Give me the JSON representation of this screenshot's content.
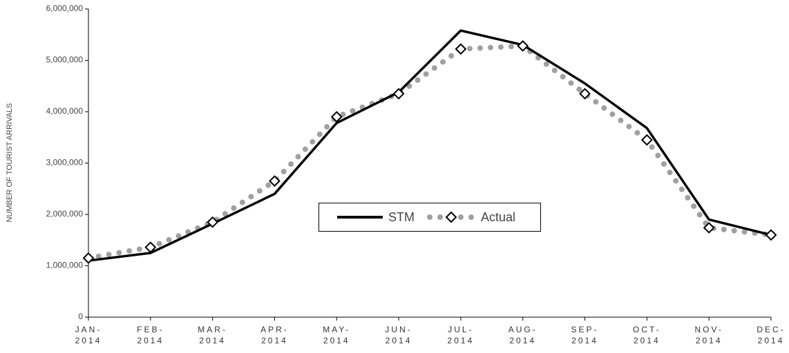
{
  "chart_data": {
    "type": "line",
    "y_label": "NUMBER OF TOURIST ARRIVALS",
    "categories": [
      "JAN-\n2014",
      "FEB-\n2014",
      "MAR-\n2014",
      "APR-\n2014",
      "MAY-\n2014",
      "JUN-\n2014",
      "JUL-\n2014",
      "AUG-\n2014",
      "SEP-\n2014",
      "OCT-\n2014",
      "NOV-\n2014",
      "DEC-\n2014"
    ],
    "series": [
      {
        "name": "STM",
        "color": "#000000",
        "values": [
          1100000,
          1250000,
          1820000,
          2400000,
          3780000,
          4380000,
          5580000,
          5300000,
          4550000,
          3680000,
          1900000,
          1600000
        ]
      },
      {
        "name": "Actual",
        "color": "#a0a0a0",
        "values": [
          1150000,
          1360000,
          1850000,
          2650000,
          3900000,
          4350000,
          5220000,
          5280000,
          4350000,
          3450000,
          1740000,
          1600000
        ]
      }
    ],
    "ylim": [
      0,
      6000000
    ],
    "yticks": [
      0,
      {
        "value": 1000000,
        "label": "1,000,000"
      },
      {
        "value": 2000000,
        "label": "2,000,000"
      },
      {
        "value": 3000000,
        "label": "3,000,000"
      },
      {
        "value": 4000000,
        "label": "4,000,000"
      },
      {
        "value": 5000000,
        "label": "5,000,000"
      },
      {
        "value": 6000000,
        "label": "6,000,000"
      }
    ],
    "legend": "center"
  }
}
